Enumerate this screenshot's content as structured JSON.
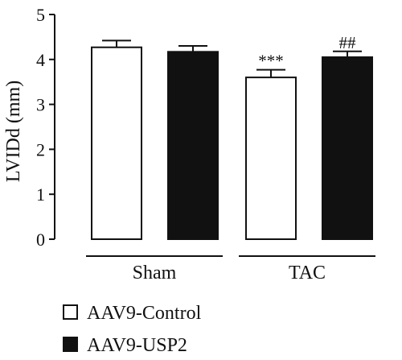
{
  "chart_data": {
    "type": "bar",
    "ylabel": "LVIDd (mm)",
    "xlabel": "",
    "ylim": [
      0,
      5
    ],
    "yticks": [
      "0",
      "1",
      "2",
      "3",
      "4",
      "5"
    ],
    "groups": [
      "Sham",
      "TAC"
    ],
    "series": [
      {
        "name": "AAV9-Control",
        "color": "#ffffff",
        "values": [
          4.27,
          3.6
        ],
        "errors": [
          0.15,
          0.17
        ],
        "annotations": [
          "",
          "***"
        ]
      },
      {
        "name": "AAV9-USP2",
        "color": "#111111",
        "values": [
          4.17,
          4.05
        ],
        "errors": [
          0.13,
          0.13
        ],
        "annotations": [
          "",
          "##"
        ]
      }
    ],
    "grid": false,
    "legend_position": "bottom-left"
  }
}
